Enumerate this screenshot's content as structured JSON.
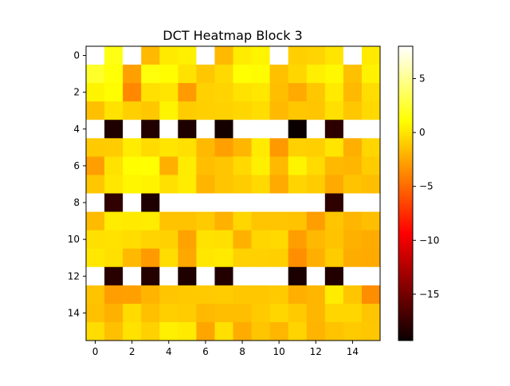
{
  "chart_data": {
    "type": "heatmap",
    "title": "DCT Heatmap Block 3",
    "xlabel": "",
    "ylabel": "",
    "rows": 16,
    "cols": 16,
    "x_ticks": [
      0,
      2,
      4,
      6,
      8,
      10,
      12,
      14
    ],
    "y_ticks": [
      0,
      2,
      4,
      6,
      8,
      10,
      12,
      14
    ],
    "colormap": "hot",
    "clim": [
      -19.3,
      8.0
    ],
    "colorbar_ticks": [
      5,
      0,
      -5,
      -10,
      -15
    ],
    "grid": false,
    "values": [
      [
        8.0,
        1.6,
        8.0,
        -1.8,
        0.2,
        0.4,
        8.0,
        -1.8,
        0.3,
        0.6,
        8.0,
        -0.9,
        -0.7,
        0.0,
        8.0,
        0.2
      ],
      [
        2.2,
        1.2,
        -2.8,
        1.4,
        1.0,
        -0.1,
        -1.2,
        -0.5,
        1.1,
        0.9,
        -1.5,
        -0.6,
        0.4,
        0.8,
        -1.5,
        0.5
      ],
      [
        0.6,
        1.0,
        -3.8,
        -0.2,
        0.0,
        -3.0,
        -0.8,
        -0.7,
        -0.1,
        0.1,
        -1.6,
        -2.4,
        -1.2,
        0.2,
        -1.8,
        -0.3
      ],
      [
        -1.5,
        -0.1,
        -0.9,
        -1.2,
        0.6,
        -1.0,
        -0.9,
        -0.8,
        -0.6,
        -0.3,
        -1.8,
        -1.2,
        -1.3,
        -0.2,
        -1.2,
        -0.5
      ],
      [
        8.0,
        -18.5,
        8.0,
        -18.4,
        8.0,
        -18.6,
        8.0,
        -18.9,
        8.0,
        8.0,
        8.0,
        -19.3,
        8.0,
        -18.0,
        8.0,
        8.0
      ],
      [
        -1.1,
        -1.0,
        0.3,
        -0.4,
        0.0,
        -0.2,
        -1.8,
        -2.8,
        -1.9,
        0.2,
        -3.1,
        -0.8,
        -0.9,
        0.0,
        -2.2,
        -0.6
      ],
      [
        -2.9,
        -0.1,
        1.0,
        1.1,
        -2.2,
        0.3,
        -1.6,
        -1.3,
        -0.5,
        0.4,
        -1.8,
        0.6,
        -0.4,
        -1.8,
        -1.9,
        -1.0
      ],
      [
        -1.2,
        0.1,
        0.7,
        0.6,
        -0.2,
        0.3,
        -2.0,
        -1.3,
        -1.0,
        -0.5,
        -2.4,
        -0.7,
        -1.0,
        -2.4,
        -1.4,
        -1.6
      ],
      [
        8.0,
        -17.8,
        8.0,
        -18.5,
        8.0,
        8.0,
        8.0,
        8.0,
        8.0,
        8.0,
        8.0,
        8.0,
        8.0,
        -17.9,
        8.0,
        8.0
      ],
      [
        -1.7,
        0.3,
        0.2,
        0.3,
        -1.4,
        -1.4,
        -1.1,
        -2.1,
        -0.6,
        -1.3,
        -1.3,
        -1.4,
        -2.9,
        -1.3,
        -1.9,
        -1.6
      ],
      [
        -0.2,
        -0.1,
        -0.3,
        -0.7,
        -0.8,
        -2.7,
        -0.1,
        -0.2,
        -2.1,
        -0.6,
        -0.5,
        -2.9,
        -1.8,
        -1.4,
        -2.1,
        -2.3
      ],
      [
        0.1,
        -0.2,
        -1.8,
        -3.0,
        -0.3,
        -2.5,
        0.1,
        0.2,
        -0.8,
        -0.8,
        -0.9,
        -3.5,
        -2.2,
        -1.0,
        -2.3,
        -2.4
      ],
      [
        8.0,
        -18.1,
        8.0,
        -18.3,
        8.0,
        -18.5,
        8.0,
        -18.4,
        8.0,
        8.0,
        8.0,
        -18.7,
        8.0,
        -18.4,
        8.0,
        8.0
      ],
      [
        -1.4,
        -2.9,
        -2.8,
        -2.0,
        -1.3,
        -1.1,
        -1.1,
        -1.0,
        -1.2,
        -1.2,
        -1.1,
        -2.2,
        -1.9,
        0.3,
        -1.3,
        -3.6
      ],
      [
        -1.5,
        -2.1,
        -0.4,
        -1.5,
        -0.9,
        -1.0,
        -1.8,
        -1.6,
        -1.6,
        -1.1,
        -0.6,
        -1.1,
        -1.9,
        -0.6,
        -0.6,
        -1.3
      ],
      [
        -0.3,
        -1.5,
        -0.1,
        -0.8,
        0.4,
        0.2,
        -2.6,
        -0.2,
        -2.3,
        -1.3,
        -1.9,
        -0.7,
        -2.0,
        -1.4,
        -1.1,
        -1.2
      ]
    ]
  }
}
